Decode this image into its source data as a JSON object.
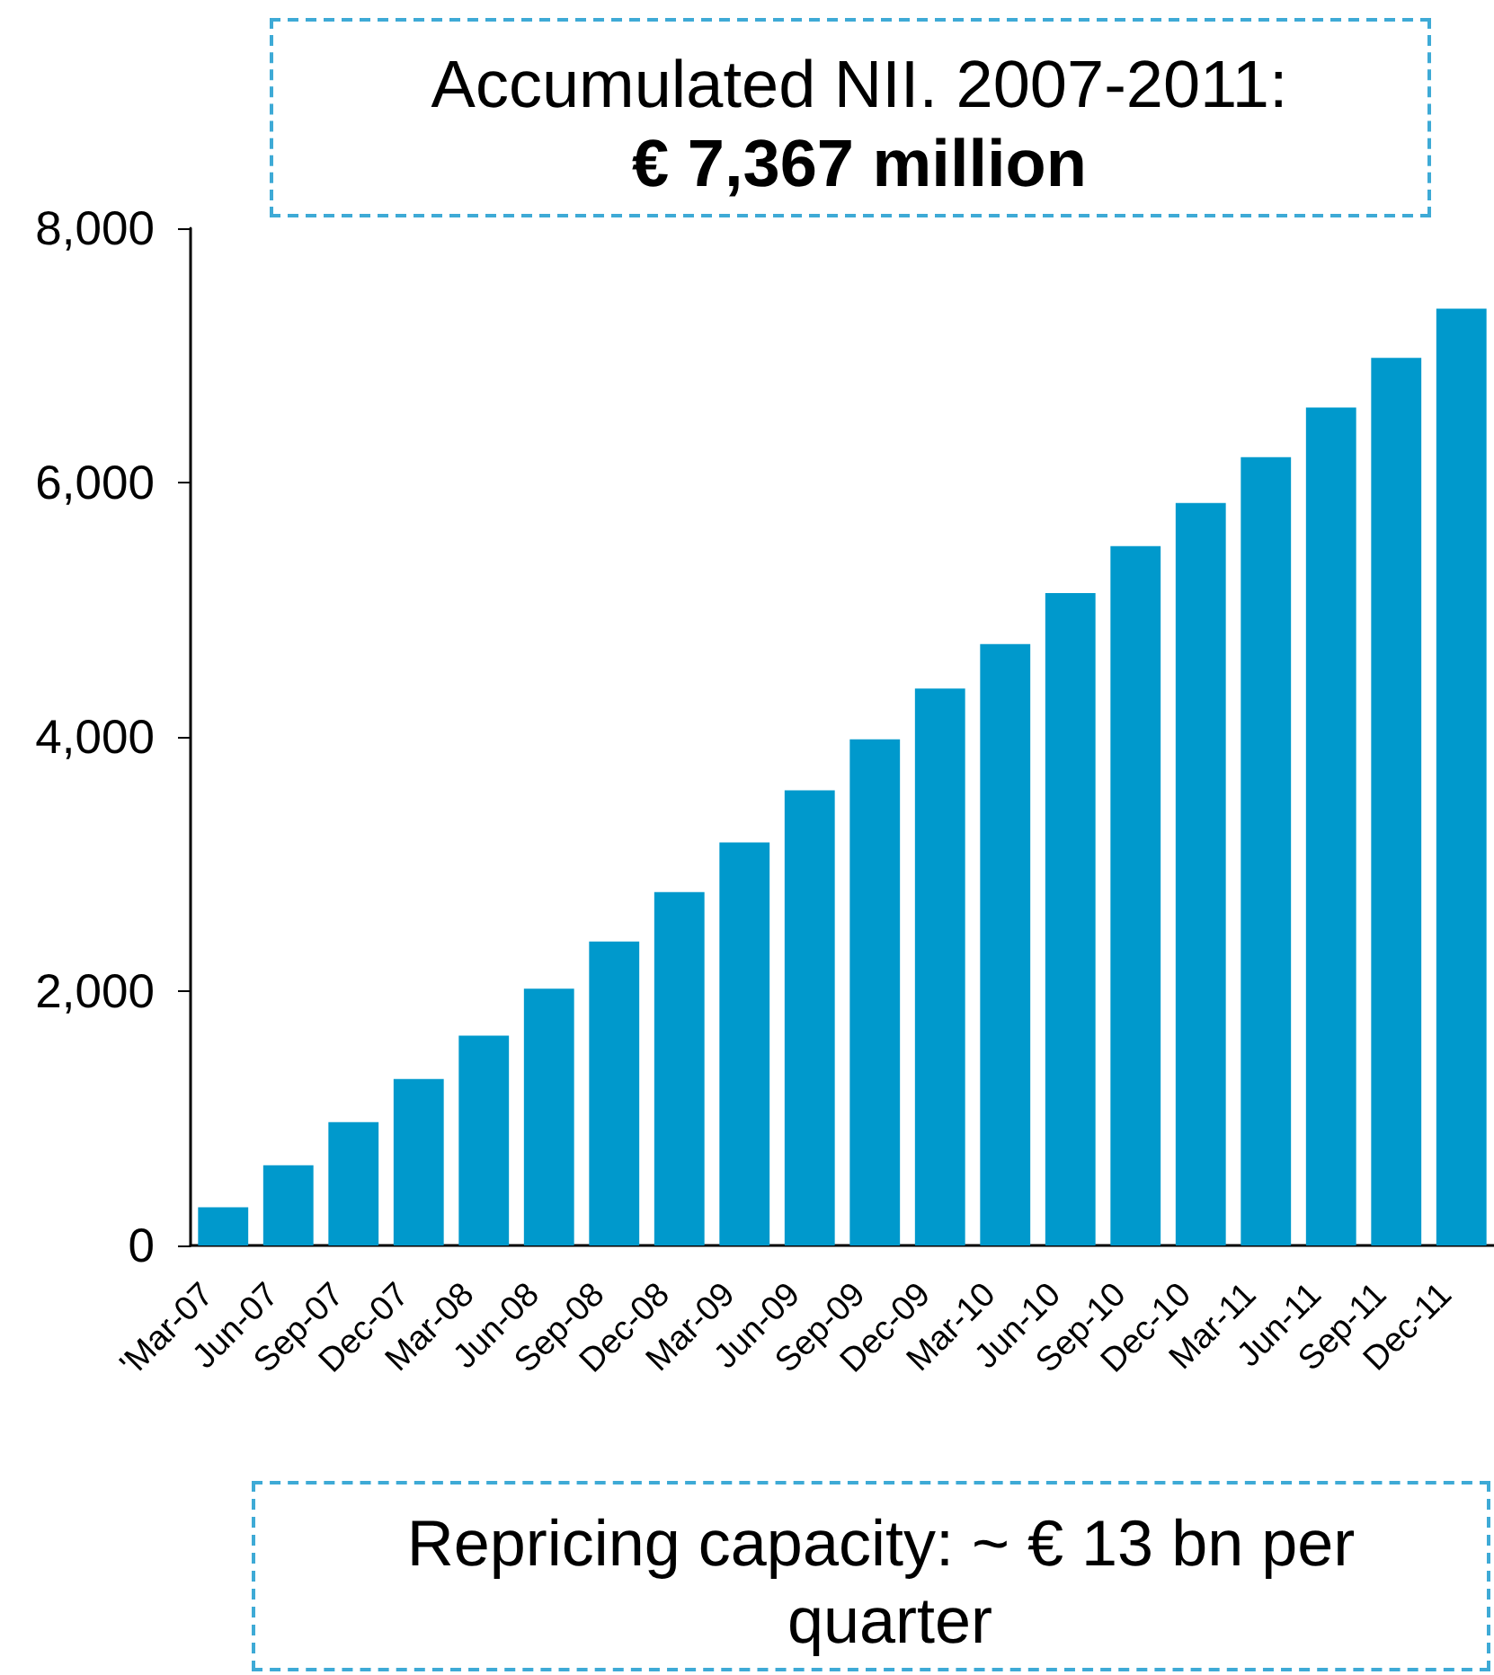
{
  "chart_data": {
    "type": "bar",
    "title": "Accumulated NII. 2007-2011:",
    "subtitle": "€ 7,367 million",
    "annotations": [
      "Repricing capacity: ~ € 13 bn per quarter"
    ],
    "categories": [
      "'Mar-07",
      "Jun-07",
      "Sep-07",
      "Dec-07",
      "Mar-08",
      "Jun-08",
      "Sep-08",
      "Dec-08",
      "Mar-09",
      "Jun-09",
      "Sep-09",
      "Dec-09",
      "Mar-10",
      "Jun-10",
      "Sep-10",
      "Dec-10",
      "Mar-11",
      "Jun-11",
      "Sep-11",
      "Dec-11"
    ],
    "values": [
      300,
      630,
      970,
      1310,
      1650,
      2020,
      2390,
      2780,
      3170,
      3580,
      3980,
      4380,
      4730,
      5130,
      5500,
      5840,
      6200,
      6590,
      6980,
      7367
    ],
    "color": "#0099cc",
    "ylim": [
      0,
      8000
    ],
    "yticks": [
      0,
      {
        "value": 2000,
        "label": "2,000"
      },
      {
        "value": 4000,
        "label": "4,000"
      },
      {
        "value": 6000,
        "label": "6,000"
      },
      {
        "value": 8000,
        "label": "8,000"
      }
    ],
    "grid": false
  }
}
